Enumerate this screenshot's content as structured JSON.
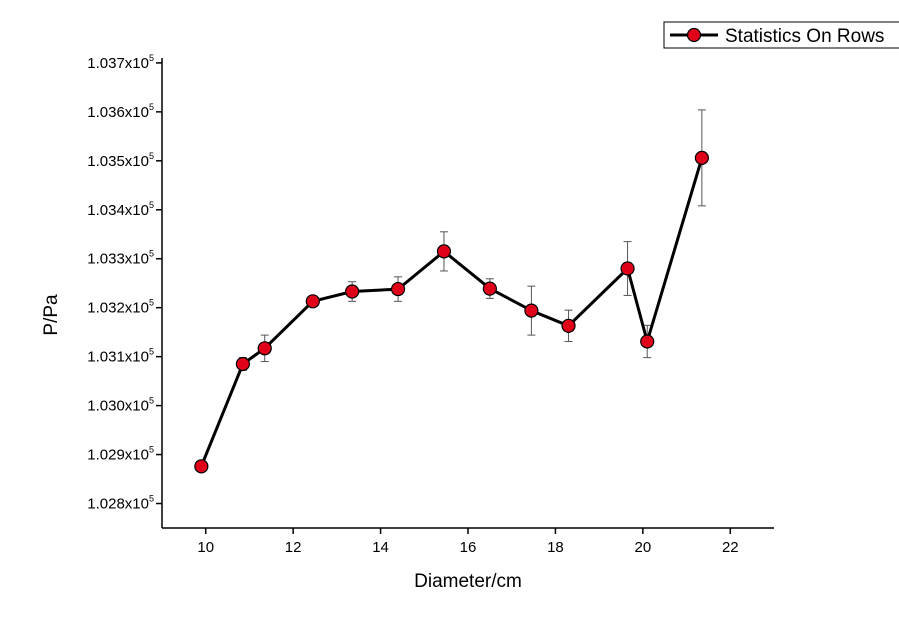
{
  "chart_data": {
    "type": "line",
    "xlabel": "Diameter/cm",
    "ylabel": "P/Pa",
    "xlim": [
      9,
      23
    ],
    "ylim": [
      102750,
      103710
    ],
    "x_ticks": [
      10,
      12,
      14,
      16,
      18,
      20,
      22
    ],
    "y_ticks": [
      {
        "value": 102800,
        "mantissa": "1.028x10",
        "exp": "5"
      },
      {
        "value": 102900,
        "mantissa": "1.029x10",
        "exp": "5"
      },
      {
        "value": 103000,
        "mantissa": "1.030x10",
        "exp": "5"
      },
      {
        "value": 103100,
        "mantissa": "1.031x10",
        "exp": "5"
      },
      {
        "value": 103200,
        "mantissa": "1.032x10",
        "exp": "5"
      },
      {
        "value": 103300,
        "mantissa": "1.033x10",
        "exp": "5"
      },
      {
        "value": 103400,
        "mantissa": "1.034x10",
        "exp": "5"
      },
      {
        "value": 103500,
        "mantissa": "1.035x10",
        "exp": "5"
      },
      {
        "value": 103600,
        "mantissa": "1.036x10",
        "exp": "5"
      },
      {
        "value": 103700,
        "mantissa": "1.037x10",
        "exp": "5"
      }
    ],
    "legend": {
      "label": "Statistics On Rows",
      "position": "top-right"
    },
    "series": [
      {
        "name": "Statistics On Rows",
        "color": "#000000",
        "marker_color": "#e0001a",
        "x": [
          9.9,
          10.85,
          11.35,
          12.45,
          13.35,
          14.4,
          15.45,
          16.5,
          17.45,
          18.3,
          19.65,
          20.1,
          21.35
        ],
        "y": [
          102876,
          103085,
          103117,
          103213,
          103233,
          103238,
          103315,
          103239,
          103194,
          103163,
          103280,
          103131,
          103506
        ],
        "yerr": [
          4,
          13,
          27,
          9,
          20,
          25,
          40,
          20,
          50,
          32,
          55,
          33,
          98
        ]
      }
    ]
  }
}
